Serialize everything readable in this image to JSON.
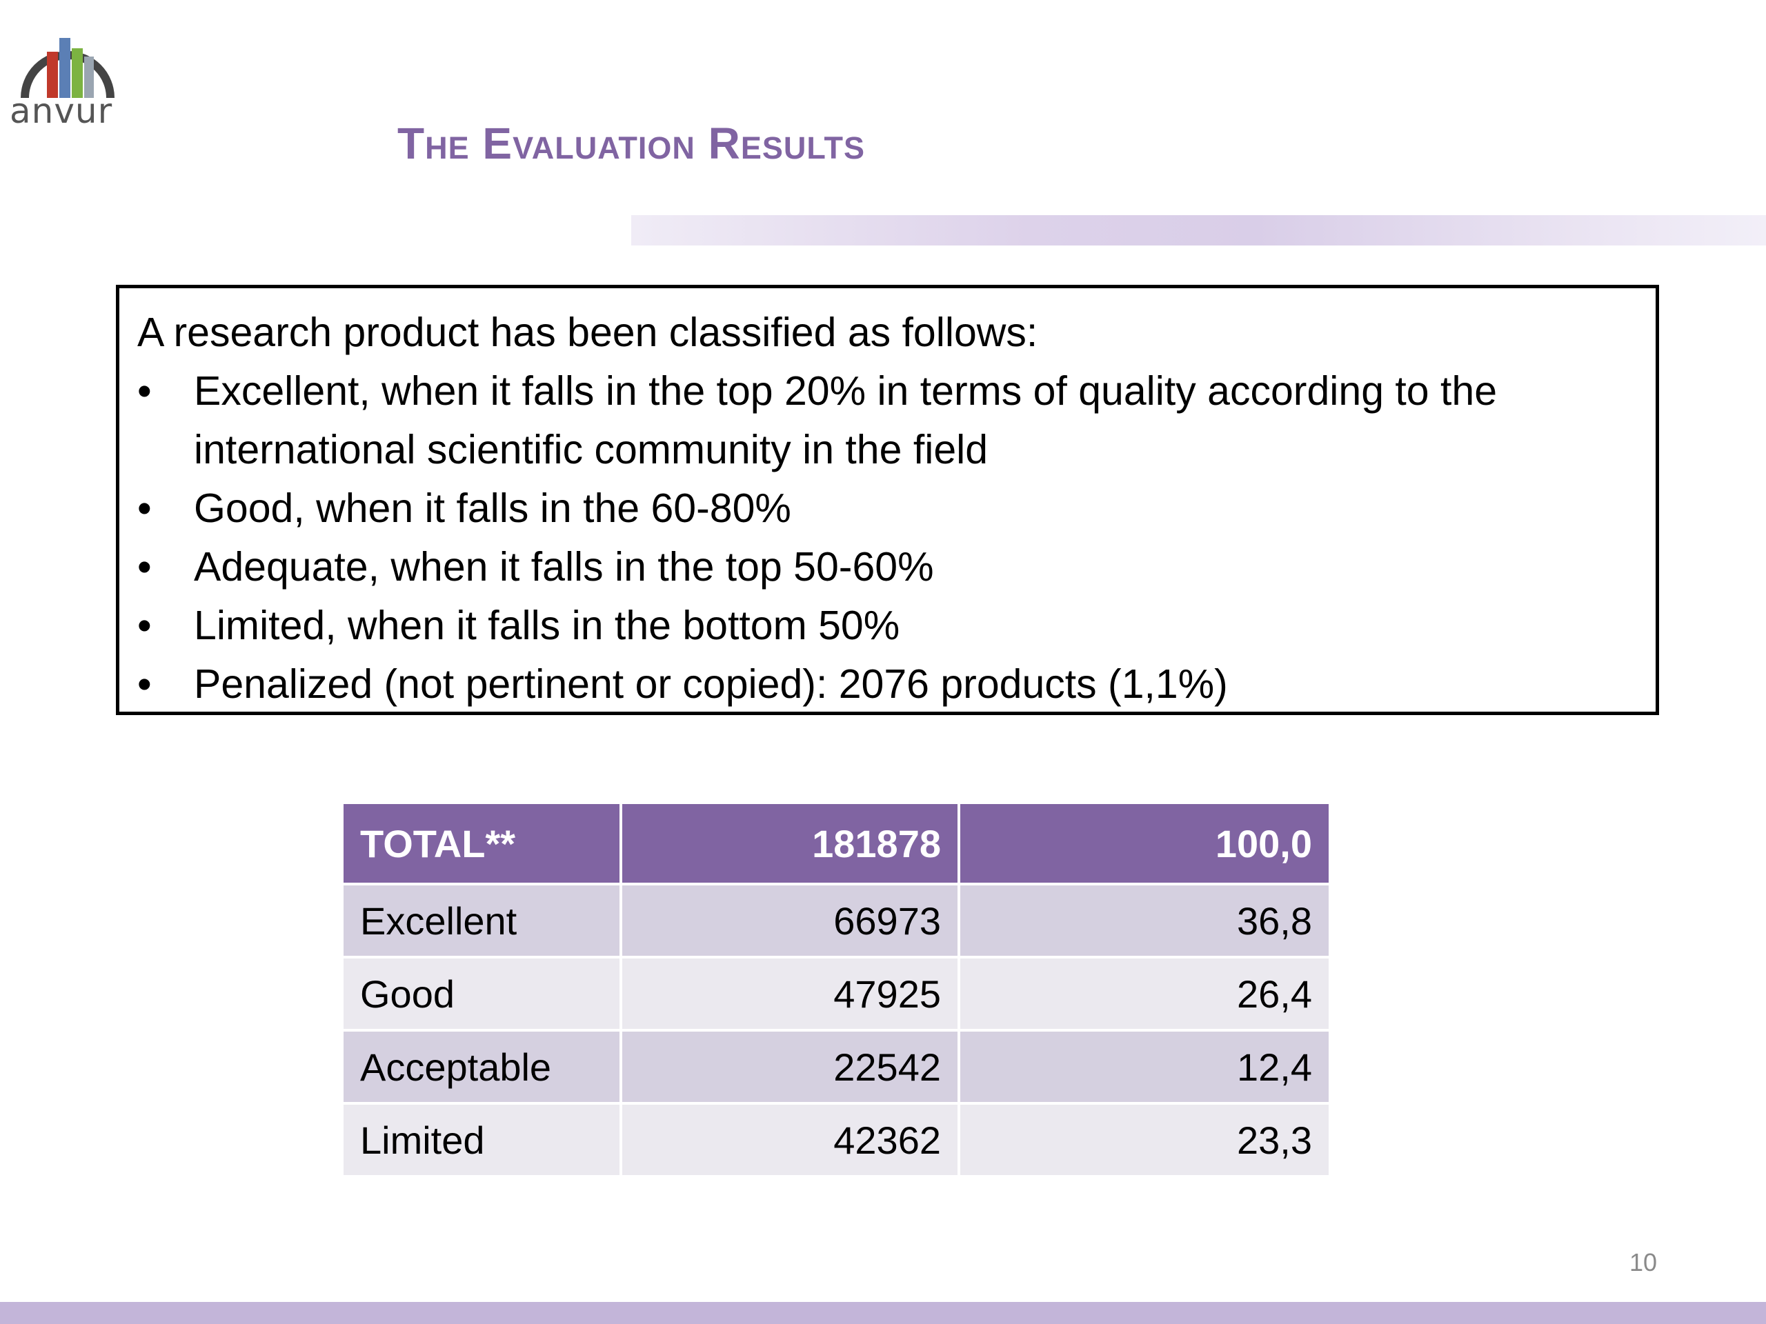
{
  "logo": {
    "text": "anvur",
    "colors": [
      "#c0392b",
      "#5b7fb5",
      "#7cb342",
      "#9aa5b1",
      "#444444"
    ]
  },
  "slide": {
    "title": "The Evaluation Results",
    "page_number": "10",
    "accent_color": "#8064a2"
  },
  "info_box": {
    "intro": "A research product has been classified as follows:",
    "bullets": [
      "Excellent, when it falls in the top 20% in terms of quality according to the international scientific community in the field",
      "Good, when it falls in the 60-80%",
      "Adequate, when it falls in the top 50-60%",
      "Limited, when it falls in the bottom 50%",
      "Penalized (not pertinent or copied): 2076 products (1,1%)"
    ]
  },
  "table": {
    "header": [
      "TOTAL**",
      "181878",
      "100,0"
    ],
    "rows": [
      [
        "Excellent",
        "66973",
        "36,8"
      ],
      [
        "Good",
        "47925",
        "26,4"
      ],
      [
        "Acceptable",
        "22542",
        "12,4"
      ],
      [
        "Limited",
        "42362",
        "23,3"
      ]
    ]
  }
}
